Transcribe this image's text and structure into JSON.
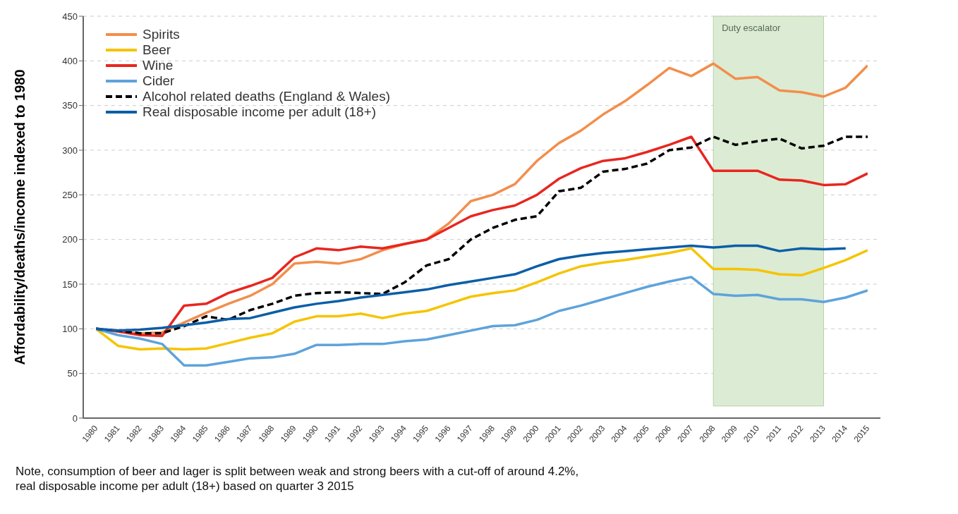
{
  "chart_data": {
    "type": "line",
    "ylabel": "Affordability/deaths/income  indexed to 1980",
    "categories": [
      "1980",
      "1981",
      "1982",
      "1983",
      "1984",
      "1985",
      "1986",
      "1987",
      "1988",
      "1989",
      "1990",
      "1991",
      "1992",
      "1993",
      "1994",
      "1995",
      "1996",
      "1997",
      "1998",
      "1999",
      "2000",
      "2001",
      "2002",
      "2003",
      "2004",
      "2005",
      "2006",
      "2007",
      "2008",
      "2009",
      "2010",
      "2011",
      "2012",
      "2013",
      "2014",
      "2015"
    ],
    "series": [
      {
        "name": "Spirits",
        "color": "#f28e4c",
        "values": [
          100,
          97,
          95,
          96,
          107,
          118,
          128,
          137,
          150,
          173,
          175,
          173,
          178,
          188,
          195,
          200,
          218,
          243,
          250,
          262,
          288,
          308,
          322,
          340,
          355,
          373,
          392,
          383,
          397,
          380,
          382,
          367,
          365,
          360,
          370,
          395
        ]
      },
      {
        "name": "Beer",
        "color": "#f5c400",
        "values": [
          100,
          81,
          77,
          78,
          77,
          78,
          84,
          90,
          95,
          108,
          114,
          114,
          117,
          112,
          117,
          120,
          128,
          136,
          140,
          143,
          152,
          162,
          170,
          174,
          177,
          181,
          185,
          190,
          167,
          167,
          166,
          161,
          160,
          168,
          177,
          188
        ]
      },
      {
        "name": "Wine",
        "color": "#e8261f",
        "values": [
          100,
          97,
          93,
          92,
          126,
          128,
          140,
          148,
          157,
          180,
          190,
          188,
          192,
          190,
          195,
          200,
          213,
          226,
          233,
          238,
          250,
          268,
          280,
          288,
          291,
          298,
          306,
          315,
          277,
          277,
          277,
          267,
          266,
          261,
          262,
          274
        ]
      },
      {
        "name": "Cider",
        "color": "#5ea3dc",
        "values": [
          100,
          93,
          89,
          83,
          59,
          59,
          63,
          67,
          68,
          72,
          82,
          82,
          83,
          83,
          86,
          88,
          93,
          98,
          103,
          104,
          110,
          120,
          126,
          133,
          140,
          147,
          153,
          158,
          139,
          137,
          138,
          133,
          133,
          130,
          135,
          143
        ]
      },
      {
        "name": "Alcohol related deaths (England & Wales)",
        "color": "#000000",
        "line_style": "dashed",
        "values": [
          100,
          98,
          95,
          95,
          103,
          114,
          110,
          121,
          128,
          137,
          140,
          141,
          140,
          139,
          152,
          171,
          178,
          200,
          213,
          222,
          226,
          254,
          258,
          276,
          279,
          285,
          300,
          303,
          315,
          306,
          310,
          313,
          302,
          305,
          315,
          315
        ]
      },
      {
        "name": "Real disposable income per adult (18+)",
        "color": "#0b5ea8",
        "values": [
          100,
          98,
          99,
          101,
          104,
          107,
          111,
          112,
          118,
          124,
          128,
          131,
          135,
          138,
          141,
          144,
          149,
          153,
          157,
          161,
          170,
          178,
          182,
          185,
          187,
          189,
          191,
          193,
          191,
          193,
          193,
          187,
          190,
          189,
          190,
          null
        ]
      }
    ],
    "ylim": [
      0,
      450
    ],
    "yticks": [
      0,
      50,
      100,
      150,
      200,
      250,
      300,
      350,
      400,
      450
    ],
    "grid": "y",
    "legend": "top left",
    "marker": "none",
    "line_style": "solid",
    "bands": [
      {
        "axis": "x",
        "from": "2008",
        "to": "2013",
        "label": "Duty escalator",
        "color": "#dcebd3"
      }
    ],
    "annotations": [
      "Note, consumption of beer and lager is split between weak and strong beers with a cut-off of around 4.2%,",
      "real disposable income per adult (18+) based on quarter 3 2015"
    ]
  }
}
